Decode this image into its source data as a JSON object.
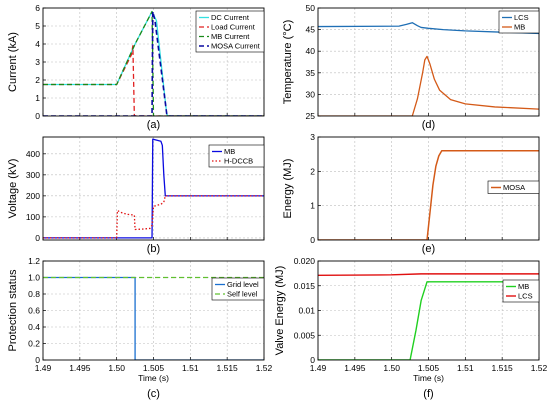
{
  "chart_data": [
    {
      "id": "a",
      "type": "line",
      "panel_label": "(a)",
      "xlim": [
        1.49,
        1.52
      ],
      "ylim": [
        0,
        6
      ],
      "xticks": [],
      "yticks": [
        0,
        1,
        2,
        3,
        4,
        5,
        6
      ],
      "xticklabels": false,
      "yticklabels": [
        "0",
        "1",
        "2",
        "3",
        "4",
        "5",
        "6"
      ],
      "xlabel": "",
      "ylabel": "Current (kA)",
      "grid": true,
      "legend_position": "top-right",
      "series": [
        {
          "name": "DC Current",
          "color": "#33e0e0",
          "style": "solid",
          "width": 1.3,
          "x": [
            1.49,
            1.5,
            1.5025,
            1.5048,
            1.5054,
            1.5068,
            1.507,
            1.52
          ],
          "y": [
            1.75,
            1.75,
            4.0,
            5.8,
            5.3,
            0.1,
            0,
            0
          ]
        },
        {
          "name": "Load Current",
          "color": "#e02020",
          "style": "dash",
          "width": 1.3,
          "x": [
            1.49,
            1.5,
            1.502,
            1.5022,
            1.5024,
            1.5025,
            1.52
          ],
          "y": [
            1.75,
            1.75,
            3.4,
            3.9,
            0,
            0,
            0
          ]
        },
        {
          "name": "MB Current",
          "color": "#1a8a1a",
          "style": "dash",
          "width": 1.3,
          "x": [
            1.49,
            1.5,
            1.5025,
            1.5048,
            1.505,
            1.52
          ],
          "y": [
            1.75,
            1.75,
            4.0,
            5.8,
            0,
            0
          ]
        },
        {
          "name": "MOSA Current",
          "color": "#0a0aa0",
          "style": "dash",
          "width": 1.6,
          "x": [
            1.49,
            1.5048,
            1.5049,
            1.5052,
            1.5068,
            1.507,
            1.52
          ],
          "y": [
            0,
            0,
            5.8,
            5.3,
            0.1,
            0,
            0
          ]
        }
      ]
    },
    {
      "id": "b",
      "type": "line",
      "panel_label": "(b)",
      "xlim": [
        1.49,
        1.52
      ],
      "ylim": [
        -10,
        480
      ],
      "xticks": [],
      "yticks": [
        0,
        100,
        200,
        300,
        400
      ],
      "xticklabels": false,
      "yticklabels": [
        "0",
        "100",
        "200",
        "300",
        "400"
      ],
      "xlabel": "",
      "ylabel": "Voltage (kV)",
      "grid": true,
      "legend_position": "top-right",
      "series": [
        {
          "name": "MB",
          "color": "#0a0ae0",
          "style": "solid",
          "width": 1.3,
          "x": [
            1.49,
            1.5048,
            1.5049,
            1.506,
            1.5062,
            1.5064,
            1.5066,
            1.52
          ],
          "y": [
            0,
            0,
            470,
            460,
            440,
            300,
            200,
            200
          ]
        },
        {
          "name": "H-DCCB",
          "color": "#e01010",
          "style": "dot",
          "width": 1.3,
          "x": [
            1.49,
            1.5,
            1.5001,
            1.5008,
            1.5015,
            1.502,
            1.5024,
            1.5025,
            1.5035,
            1.5045,
            1.5048,
            1.505,
            1.506,
            1.5064,
            1.5066,
            1.52
          ],
          "y": [
            0,
            0,
            130,
            118,
            112,
            110,
            108,
            40,
            42,
            45,
            60,
            150,
            160,
            170,
            200,
            200
          ]
        }
      ]
    },
    {
      "id": "c",
      "type": "line",
      "panel_label": "(c)",
      "xlim": [
        1.49,
        1.52
      ],
      "ylim": [
        0,
        1.2
      ],
      "xticks": [
        1.49,
        1.495,
        1.5,
        1.505,
        1.51,
        1.515,
        1.52
      ],
      "yticks": [
        0,
        0.2,
        0.4,
        0.6,
        0.8,
        1.0,
        1.2
      ],
      "xticklabels": [
        "1.49",
        "1.495",
        "1.50",
        "1.505",
        "1.51",
        "1.515",
        "1.52"
      ],
      "yticklabels": [
        "0",
        "0.2",
        "0.4",
        "0.6",
        "0.8",
        "1.0",
        "1.2"
      ],
      "xlabel": "Time (s)",
      "ylabel": "Protection status",
      "grid": true,
      "legend_position": "right",
      "series": [
        {
          "name": "Grid level",
          "color": "#1a6fd0",
          "style": "solid",
          "width": 1.3,
          "x": [
            1.49,
            1.5025,
            1.5025,
            1.52
          ],
          "y": [
            1,
            1,
            0,
            0
          ]
        },
        {
          "name": "Self level",
          "color": "#60c030",
          "style": "dash",
          "width": 1.3,
          "x": [
            1.49,
            1.52
          ],
          "y": [
            1,
            1
          ]
        }
      ]
    },
    {
      "id": "d",
      "type": "line",
      "panel_label": "(d)",
      "xlim": [
        1.49,
        1.52
      ],
      "ylim": [
        25,
        50
      ],
      "xticks": [],
      "yticks": [
        25,
        30,
        35,
        40,
        45,
        50
      ],
      "xticklabels": false,
      "yticklabels": [
        "25",
        "30",
        "35",
        "40",
        "45",
        "50"
      ],
      "xlabel": "",
      "ylabel": "Temperature (°C)",
      "grid": true,
      "legend_position": "top-right",
      "series": [
        {
          "name": "LCS",
          "color": "#1f6fb5",
          "style": "solid",
          "width": 1.3,
          "x": [
            1.49,
            1.501,
            1.502,
            1.5028,
            1.5035,
            1.504,
            1.505,
            1.507,
            1.51,
            1.515,
            1.52
          ],
          "y": [
            45.7,
            45.8,
            46.2,
            46.6,
            45.9,
            45.5,
            45.3,
            45.0,
            44.7,
            44.4,
            44.1
          ]
        },
        {
          "name": "MB",
          "color": "#d45a18",
          "style": "solid",
          "width": 1.3,
          "x": [
            1.49,
            1.5028,
            1.5035,
            1.5042,
            1.5045,
            1.5048,
            1.5052,
            1.5058,
            1.5065,
            1.508,
            1.51,
            1.514,
            1.52
          ],
          "y": [
            25,
            25,
            29,
            35,
            38,
            38.8,
            37,
            33.5,
            31,
            28.8,
            27.8,
            27.1,
            26.6
          ]
        }
      ]
    },
    {
      "id": "e",
      "type": "line",
      "panel_label": "(e)",
      "xlim": [
        1.49,
        1.52
      ],
      "ylim": [
        0,
        3
      ],
      "xticks": [],
      "yticks": [
        0,
        1,
        2,
        3
      ],
      "xticklabels": false,
      "yticklabels": [
        "0",
        "1",
        "2",
        "3"
      ],
      "xlabel": "",
      "ylabel": "Energy (MJ)",
      "grid": true,
      "legend_position": "right",
      "series": [
        {
          "name": "MOSA",
          "color": "#d45a18",
          "style": "solid",
          "width": 1.5,
          "x": [
            1.49,
            1.5048,
            1.5052,
            1.5056,
            1.506,
            1.5064,
            1.5068,
            1.52
          ],
          "y": [
            0,
            0,
            0.8,
            1.6,
            2.15,
            2.45,
            2.6,
            2.6
          ]
        }
      ]
    },
    {
      "id": "f",
      "type": "line",
      "panel_label": "(f)",
      "xlim": [
        1.49,
        1.52
      ],
      "ylim": [
        0,
        0.02
      ],
      "xticks": [
        1.49,
        1.495,
        1.5,
        1.505,
        1.51,
        1.515,
        1.52
      ],
      "yticks": [
        0,
        0.005,
        0.01,
        0.015,
        0.02
      ],
      "xticklabels": [
        "1.49",
        "1.495",
        "1.50",
        "1.505",
        "1.51",
        "1.515",
        "1.52"
      ],
      "yticklabels": [
        "0",
        "0.005",
        "0.01",
        "0.015",
        "0.020"
      ],
      "xlabel": "Time (s)",
      "ylabel": "Valve Energy (MJ)",
      "grid": true,
      "legend_position": "right",
      "series": [
        {
          "name": "MB",
          "color": "#20d020",
          "style": "solid",
          "width": 1.4,
          "x": [
            1.49,
            1.5025,
            1.5033,
            1.504,
            1.5048,
            1.52
          ],
          "y": [
            0,
            0,
            0.006,
            0.012,
            0.0158,
            0.0158
          ]
        },
        {
          "name": "LCS",
          "color": "#e01010",
          "style": "solid",
          "width": 1.4,
          "x": [
            1.49,
            1.5,
            1.504,
            1.52
          ],
          "y": [
            0.0171,
            0.0172,
            0.0174,
            0.0174
          ]
        }
      ]
    }
  ]
}
